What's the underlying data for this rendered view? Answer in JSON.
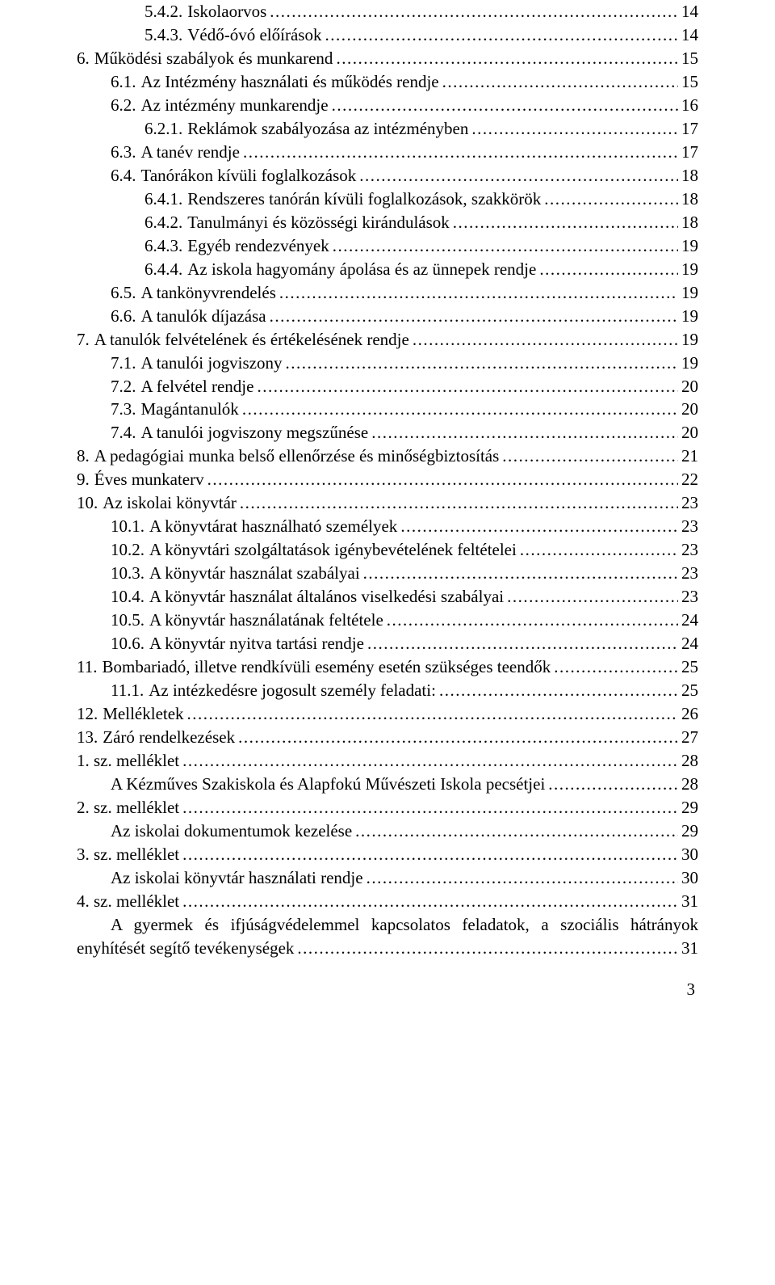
{
  "page_number": "3",
  "toc": [
    {
      "indent": 2,
      "num": "5.4.2.",
      "title": "Iskolaorvos",
      "page": "14"
    },
    {
      "indent": 2,
      "num": "5.4.3.",
      "title": "Védő-óvó előírások",
      "page": "14"
    },
    {
      "indent": 0,
      "num": "6.",
      "title": "Működési szabályok és munkarend",
      "page": "15"
    },
    {
      "indent": 1,
      "num": "6.1.",
      "title": "Az Intézmény használati és működés rendje",
      "page": "15"
    },
    {
      "indent": 1,
      "num": "6.2.",
      "title": "Az intézmény munkarendje",
      "page": "16"
    },
    {
      "indent": 2,
      "num": "6.2.1.",
      "title": "Reklámok szabályozása az intézményben",
      "page": "17"
    },
    {
      "indent": 1,
      "num": "6.3.",
      "title": "A tanév rendje",
      "page": "17"
    },
    {
      "indent": 1,
      "num": "6.4.",
      "title": "Tanórákon kívüli foglalkozások",
      "page": "18"
    },
    {
      "indent": 2,
      "num": "6.4.1.",
      "title": "Rendszeres tanórán kívüli foglalkozások, szakkörök",
      "page": "18"
    },
    {
      "indent": 2,
      "num": "6.4.2.",
      "title": "Tanulmányi és közösségi kirándulások",
      "page": "18"
    },
    {
      "indent": 2,
      "num": "6.4.3.",
      "title": "Egyéb rendezvények",
      "page": "19"
    },
    {
      "indent": 2,
      "num": "6.4.4.",
      "title": "Az iskola hagyomány ápolása és az ünnepek rendje",
      "page": "19"
    },
    {
      "indent": 1,
      "num": "6.5.",
      "title": "A tankönyvrendelés",
      "page": "19"
    },
    {
      "indent": 1,
      "num": "6.6.",
      "title": "A tanulók díjazása",
      "page": "19"
    },
    {
      "indent": 0,
      "num": "7.",
      "title": "A tanulók felvételének és értékelésének rendje",
      "page": "19"
    },
    {
      "indent": 1,
      "num": "7.1.",
      "title": "A tanulói jogviszony",
      "page": "19"
    },
    {
      "indent": 1,
      "num": "7.2.",
      "title": "A felvétel rendje",
      "page": "20"
    },
    {
      "indent": 1,
      "num": "7.3.",
      "title": "Magántanulók",
      "page": "20"
    },
    {
      "indent": 1,
      "num": "7.4.",
      "title": "A tanulói jogviszony megszűnése",
      "page": "20"
    },
    {
      "indent": 0,
      "num": "8.",
      "title": "A pedagógiai munka belső ellenőrzése és minőségbiztosítás",
      "page": "21"
    },
    {
      "indent": 0,
      "num": "9.",
      "title": "Éves munkaterv",
      "page": "22"
    },
    {
      "indent": 0,
      "num": "10.",
      "title": "Az iskolai könyvtár",
      "page": "23"
    },
    {
      "indent": 1,
      "num": "10.1.",
      "title": "A könyvtárat használható személyek",
      "page": "23"
    },
    {
      "indent": 1,
      "num": "10.2.",
      "title": "A könyvtári szolgáltatások igénybevételének feltételei",
      "page": "23"
    },
    {
      "indent": 1,
      "num": "10.3.",
      "title": "A könyvtár használat szabályai",
      "page": "23"
    },
    {
      "indent": 1,
      "num": "10.4.",
      "title": "A könyvtár használat általános viselkedési szabályai",
      "page": "23"
    },
    {
      "indent": 1,
      "num": "10.5.",
      "title": "A könyvtár használatának feltétele",
      "page": "24"
    },
    {
      "indent": 1,
      "num": "10.6.",
      "title": "A könyvtár nyitva tartási rendje",
      "page": "24"
    },
    {
      "indent": 0,
      "num": "11.",
      "title": "Bombariadó, illetve rendkívüli esemény esetén szükséges teendők",
      "page": "25"
    },
    {
      "indent": 1,
      "num": "11.1.",
      "title": "Az intézkedésre jogosult személy feladati:",
      "page": "25"
    },
    {
      "indent": 0,
      "num": "12.",
      "title": "Mellékletek",
      "page": "26"
    },
    {
      "indent": 0,
      "num": "13.",
      "title": "Záró rendelkezések",
      "page": "27"
    },
    {
      "indent": 0,
      "num": "",
      "title": "1. sz. melléklet",
      "page": "28"
    },
    {
      "indent": 1,
      "num": "",
      "title": "A Kézműves Szakiskola és Alapfokú Művészeti Iskola pecsétjei",
      "page": "28"
    },
    {
      "indent": 0,
      "num": "",
      "title": "2. sz. melléklet",
      "page": "29"
    },
    {
      "indent": 1,
      "num": "",
      "title": "Az iskolai dokumentumok kezelése",
      "page": "29"
    },
    {
      "indent": 0,
      "num": "",
      "title": "3. sz. melléklet",
      "page": "30"
    },
    {
      "indent": 1,
      "num": "",
      "title": "Az iskolai könyvtár használati rendje",
      "page": "30"
    },
    {
      "indent": 0,
      "num": "",
      "title": "4. sz. melléklet",
      "page": "31"
    }
  ],
  "wrapped_entry": {
    "indent": 1,
    "line1": "A gyermek és ifjúságvédelemmel kapcsolatos feladatok, a szociális hátrányok",
    "line2_title": "enyhítését segítő tevékenységek",
    "page": "31"
  }
}
